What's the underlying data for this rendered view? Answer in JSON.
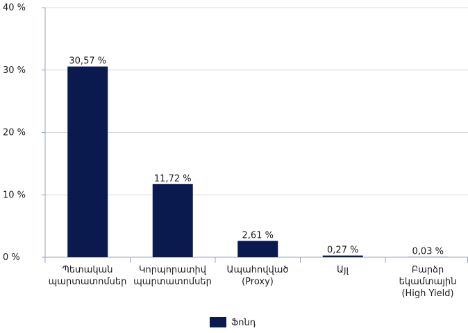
{
  "chart_data": {
    "type": "bar",
    "categories": [
      "Պետական\nպարտատոմսեր",
      "Կորպորատիվ\nպարտատոմսեր",
      "Ապահովված\n(Proxy)",
      "Այլ",
      "Բարձր\nեկամտային\n(High Yield)"
    ],
    "series": [
      {
        "name": "Ֆոնդ",
        "color": "#0a1a4f",
        "values": [
          30.57,
          11.72,
          2.61,
          0.27,
          0.03
        ],
        "value_labels": [
          "30,57 %",
          "11,72 %",
          "2,61 %",
          "0,27 %",
          "0,03 %"
        ]
      }
    ],
    "ylim": [
      0,
      40
    ],
    "yticks": [
      {
        "value": 0,
        "label": "0 %"
      },
      {
        "value": 10,
        "label": "10 %"
      },
      {
        "value": 20,
        "label": "20 %"
      },
      {
        "value": 30,
        "label": "30 %"
      },
      {
        "value": 40,
        "label": "40 %"
      }
    ],
    "grid": true,
    "legend": "bottom"
  }
}
